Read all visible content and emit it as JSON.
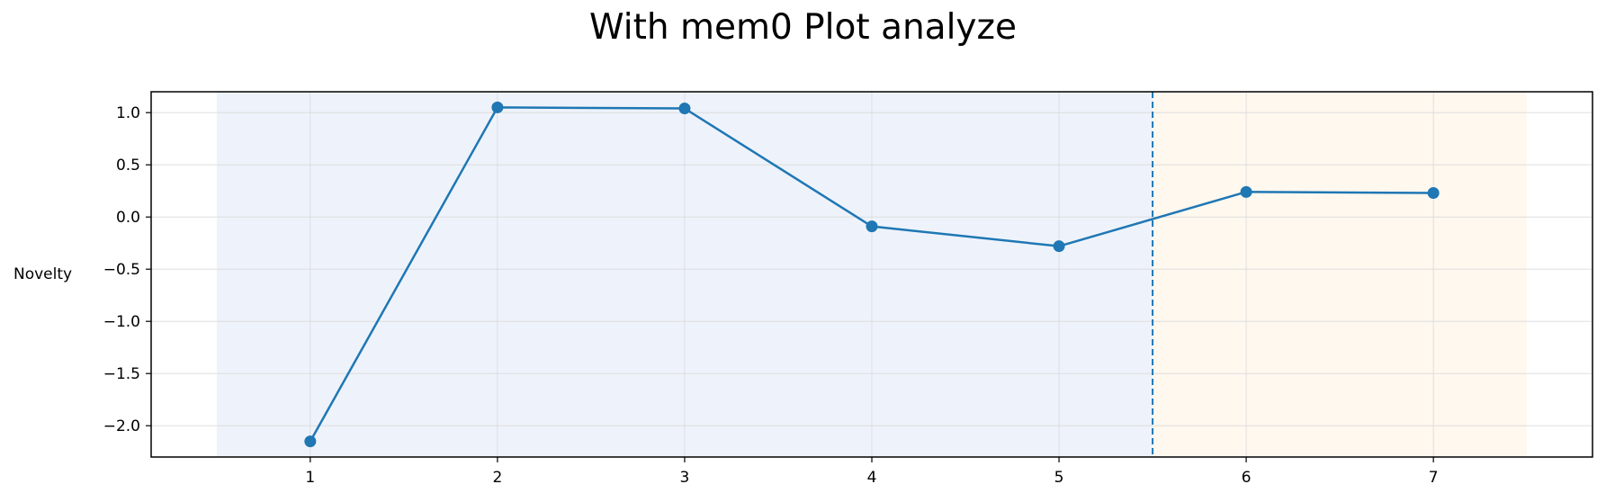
{
  "chart_data": {
    "type": "line",
    "title": "With mem0 Plot analyze",
    "xlabel": "",
    "ylabel": "Novelty",
    "x": [
      1,
      2,
      3,
      4,
      5,
      6,
      7
    ],
    "series": [
      {
        "values": [
          -2.15,
          1.05,
          1.04,
          -0.09,
          -0.28,
          0.24,
          0.23
        ],
        "color": "#1f77b4",
        "marker": "circle"
      }
    ],
    "xlim": [
      0.15,
      7.85
    ],
    "ylim": [
      -2.3,
      1.2
    ],
    "xticks": [
      1,
      2,
      3,
      4,
      5,
      6,
      7
    ],
    "yticks": [
      1.0,
      0.5,
      0.0,
      -0.5,
      -1.0,
      -1.5,
      -2.0
    ],
    "ytick_labels": [
      "1.0",
      "0.5",
      "0.0",
      "−0.5",
      "−1.0",
      "−1.5",
      "−2.0"
    ],
    "grid": true,
    "shaded_regions": [
      {
        "x_start": 0.5,
        "x_end": 5.5,
        "color": "#eef3fb"
      },
      {
        "x_start": 5.5,
        "x_end": 7.5,
        "color": "#fef8ef"
      }
    ],
    "vline": {
      "x": 5.5,
      "style": "dashed",
      "color": "#1f77b4"
    }
  }
}
